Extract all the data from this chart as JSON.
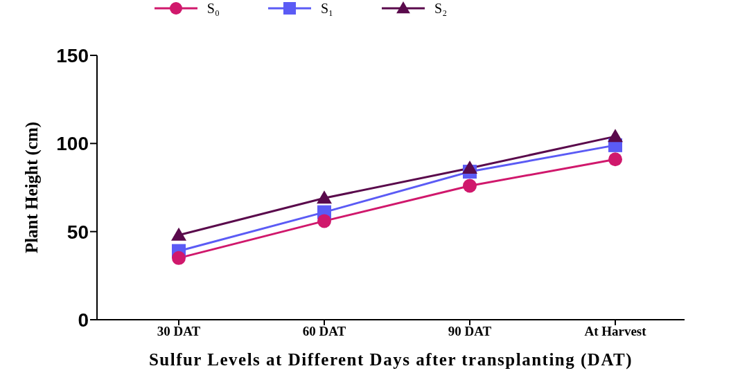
{
  "chart_data": {
    "type": "line",
    "xlabel": "Sulfur Levels at Different Days after transplanting (DAT)",
    "ylabel": "Plant Height (cm)",
    "categories": [
      "30 DAT",
      "60 DAT",
      "90 DAT",
      "At Harvest"
    ],
    "series": [
      {
        "name": "S₀",
        "color": "#d0186c",
        "marker": "circle",
        "values": [
          35,
          56,
          76,
          91
        ]
      },
      {
        "name": "S₁",
        "color": "#5b5bf5",
        "marker": "square",
        "values": [
          39,
          61,
          84,
          99
        ]
      },
      {
        "name": "S₂",
        "color": "#5a0a4c",
        "marker": "triangle",
        "values": [
          48,
          69,
          86,
          104
        ]
      }
    ],
    "ylim": [
      0,
      150
    ],
    "yticks": [
      0,
      50,
      100,
      150
    ],
    "grid": false,
    "legend": "top",
    "line_style": "solid"
  }
}
